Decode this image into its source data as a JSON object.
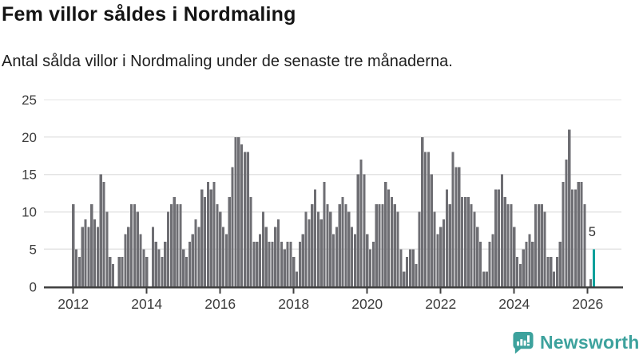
{
  "header": {
    "title": "Fem villor såldes i Nordmaling",
    "subtitle": "Antal sålda villor i Nordmaling under de senaste tre månaderna."
  },
  "chart_data": {
    "type": "bar",
    "frequency": "monthly",
    "x_start": "2012-01",
    "x_end": "2026-03",
    "values": [
      11,
      5,
      4,
      8,
      9,
      8,
      11,
      9,
      8,
      15,
      14,
      10,
      4,
      3,
      0,
      4,
      4,
      7,
      8,
      11,
      11,
      10,
      7,
      5,
      4,
      0,
      8,
      6,
      5,
      4,
      6,
      10,
      11,
      12,
      11,
      11,
      5,
      4,
      6,
      7,
      9,
      8,
      13,
      12,
      14,
      13,
      14,
      11,
      10,
      8,
      7,
      12,
      16,
      20,
      20,
      19,
      18,
      18,
      12,
      6,
      6,
      7,
      10,
      8,
      6,
      6,
      8,
      9,
      6,
      5,
      6,
      6,
      4,
      2,
      6,
      7,
      10,
      9,
      11,
      13,
      10,
      9,
      14,
      11,
      10,
      7,
      8,
      11,
      12,
      11,
      10,
      8,
      7,
      15,
      17,
      15,
      7,
      5,
      6,
      11,
      11,
      11,
      14,
      13,
      12,
      11,
      10,
      5,
      2,
      4,
      5,
      5,
      3,
      10,
      20,
      18,
      18,
      15,
      10,
      7,
      8,
      9,
      13,
      11,
      18,
      16,
      16,
      12,
      12,
      12,
      11,
      10,
      8,
      6,
      2,
      2,
      6,
      7,
      13,
      13,
      15,
      12,
      11,
      11,
      8,
      4,
      3,
      5,
      6,
      7,
      6,
      11,
      11,
      11,
      10,
      4,
      4,
      2,
      4,
      6,
      14,
      17,
      21,
      13,
      13,
      14,
      14,
      11,
      0,
      1,
      5
    ],
    "ylim": [
      0,
      25
    ],
    "yticks": [
      0,
      5,
      10,
      15,
      20,
      25
    ],
    "xticks": [
      2012,
      2014,
      2016,
      2018,
      2020,
      2022,
      2024,
      2026
    ],
    "grid": "horizontal",
    "bar_color": "#6e6e73",
    "highlight_color": "#00a09b",
    "highlight_index": 170,
    "highlight_label": "5",
    "axis_color": "#404040",
    "grid_color": "#e4e4e4",
    "tick_label_color": "#3c3c3c",
    "value_label_color": "#2e2e2e"
  },
  "footer": {
    "brand": "Newsworthy",
    "brand_color": "#3da29d"
  }
}
